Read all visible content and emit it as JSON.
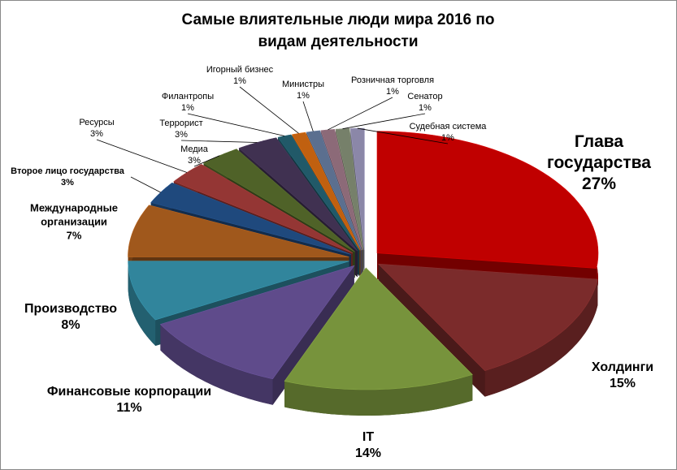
{
  "chart_data": {
    "type": "pie3d",
    "title": "Самые влиятельные люди мира 2016 по видам деятельности",
    "categories": [
      "Глава государства",
      "Холдинги",
      "IT",
      "Финансовые корпорации",
      "Производство",
      "Международные организации",
      "Второе лицо государства",
      "Ресурсы",
      "Медиа",
      "Террорист",
      "Филантропы",
      "Игорный бизнес",
      "Министры",
      "Розничная торговля",
      "Сенатор",
      "Судебная система"
    ],
    "values": [
      27,
      15,
      14,
      11,
      8,
      7,
      3,
      3,
      3,
      3,
      1,
      1,
      1,
      1,
      1,
      1
    ],
    "value_labels": [
      "27%",
      "15%",
      "14%",
      "11%",
      "8%",
      "7%",
      "3%",
      "3%",
      "3%",
      "3%",
      "1%",
      "1%",
      "1%",
      "1%",
      "1%",
      "1%"
    ],
    "colors": [
      "#c00000",
      "#7b2b2b",
      "#77933c",
      "#5f4b8b",
      "#31859c",
      "#a0581c",
      "#1f497d",
      "#943634",
      "#4f6228",
      "#403151",
      "#215968",
      "#c06010",
      "#5b6f8f",
      "#8c6a78",
      "#76806a",
      "#8b87a8"
    ]
  }
}
